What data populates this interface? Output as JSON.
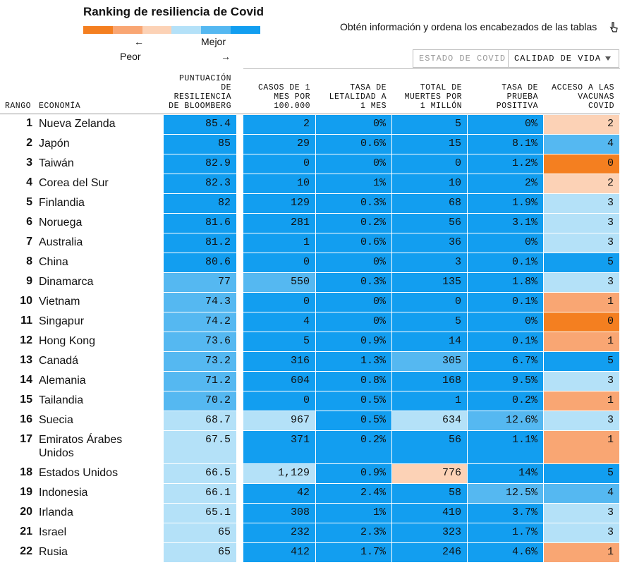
{
  "header": {
    "title": "Ranking de resiliencia de Covid",
    "hint": "Obtén información y ordena los encabezados de las tablas"
  },
  "legend": {
    "colors": [
      "#f47f20",
      "#f9a673",
      "#fcd2b6",
      "#b4e1f8",
      "#55b8f1",
      "#129ef0"
    ],
    "left_arrow": "←",
    "left_label": "Peor",
    "right_label": "Mejor",
    "right_arrow": "→"
  },
  "tabs": [
    "ESTADO DE COVID",
    "CALIDAD DE VIDA"
  ],
  "table": {
    "columns": [
      "RANGO",
      "ECONOMÍA",
      "PUNTUACIÓN\nDE\nRESILIENCIA\nDE BLOOMBERG",
      "CASOS DE 1\nMES POR\n100.000",
      "TASA DE\nLETALIDAD A\n1 MES",
      "TOTAL DE\nMUERTES POR\n1 MILLÓN",
      "TASA DE\nPRUEBA\nPOSITIVA",
      "ACCESO A LAS\nVACUNAS\nCOVID"
    ],
    "rows": [
      [
        "1",
        "Nueva Zelanda",
        "85.4",
        "2",
        "0%",
        "5",
        "0%",
        "2"
      ],
      [
        "2",
        "Japón",
        "85",
        "29",
        "0.6%",
        "15",
        "8.1%",
        "4"
      ],
      [
        "3",
        "Taiwán",
        "82.9",
        "0",
        "0%",
        "0",
        "1.2%",
        "0"
      ],
      [
        "4",
        "Corea del Sur",
        "82.3",
        "10",
        "1%",
        "10",
        "2%",
        "2"
      ],
      [
        "5",
        "Finlandia",
        "82",
        "129",
        "0.3%",
        "68",
        "1.9%",
        "3"
      ],
      [
        "6",
        "Noruega",
        "81.6",
        "281",
        "0.2%",
        "56",
        "3.1%",
        "3"
      ],
      [
        "7",
        "Australia",
        "81.2",
        "1",
        "0.6%",
        "36",
        "0%",
        "3"
      ],
      [
        "8",
        "China",
        "80.6",
        "0",
        "0%",
        "3",
        "0.1%",
        "5"
      ],
      [
        "9",
        "Dinamarca",
        "77",
        "550",
        "0.3%",
        "135",
        "1.8%",
        "3"
      ],
      [
        "10",
        "Vietnam",
        "74.3",
        "0",
        "0%",
        "0",
        "0.1%",
        "1"
      ],
      [
        "11",
        "Singapur",
        "74.2",
        "4",
        "0%",
        "5",
        "0%",
        "0"
      ],
      [
        "12",
        "Hong Kong",
        "73.6",
        "5",
        "0.9%",
        "14",
        "0.1%",
        "1"
      ],
      [
        "13",
        "Canadá",
        "73.2",
        "316",
        "1.3%",
        "305",
        "6.7%",
        "5"
      ],
      [
        "14",
        "Alemania",
        "71.2",
        "604",
        "0.8%",
        "168",
        "9.5%",
        "3"
      ],
      [
        "15",
        "Tailandia",
        "70.2",
        "0",
        "0.5%",
        "1",
        "0.2%",
        "1"
      ],
      [
        "16",
        "Suecia",
        "68.7",
        "967",
        "0.5%",
        "634",
        "12.6%",
        "3"
      ],
      [
        "17",
        "Emiratos Árabes Unidos",
        "67.5",
        "371",
        "0.2%",
        "56",
        "1.1%",
        "1"
      ],
      [
        "18",
        "Estados Unidos",
        "66.5",
        "1,129",
        "0.9%",
        "776",
        "14%",
        "5"
      ],
      [
        "19",
        "Indonesia",
        "66.1",
        "42",
        "2.4%",
        "58",
        "12.5%",
        "4"
      ],
      [
        "20",
        "Irlanda",
        "65.1",
        "308",
        "1%",
        "410",
        "3.7%",
        "3"
      ],
      [
        "21",
        "Israel",
        "65",
        "232",
        "2.3%",
        "323",
        "1.7%",
        "3"
      ],
      [
        "22",
        "Rusia",
        "65",
        "412",
        "1.7%",
        "246",
        "4.6%",
        "1"
      ]
    ]
  }
}
